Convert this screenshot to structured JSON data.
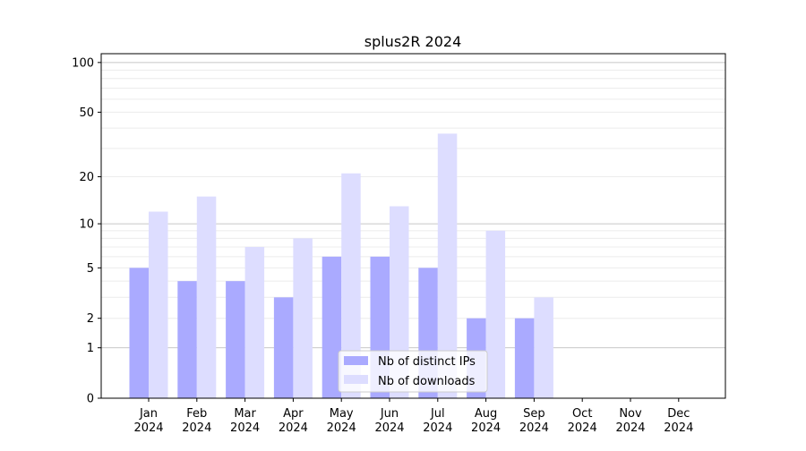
{
  "chart_data": {
    "type": "bar",
    "title": "splus2R 2024",
    "xlabel": "",
    "ylabel": "",
    "yscale": "log(1+y)",
    "ylim": [
      0,
      113
    ],
    "yticks": [
      0,
      1,
      2,
      5,
      10,
      20,
      50,
      100
    ],
    "grid": true,
    "legend_position": "bottom-center",
    "categories": [
      "Jan\n2024",
      "Feb\n2024",
      "Mar\n2024",
      "Apr\n2024",
      "May\n2024",
      "Jun\n2024",
      "Jul\n2024",
      "Aug\n2024",
      "Sep\n2024",
      "Oct\n2024",
      "Nov\n2024",
      "Dec\n2024"
    ],
    "series": [
      {
        "name": "Nb of distinct IPs",
        "color": "#aaaaff",
        "values": [
          5,
          4,
          4,
          3,
          6,
          6,
          5,
          2,
          2,
          0,
          0,
          0
        ]
      },
      {
        "name": "Nb of downloads",
        "color": "#ddddff",
        "values": [
          12,
          15,
          7,
          8,
          21,
          13,
          37,
          9,
          3,
          0,
          0,
          0
        ]
      }
    ]
  }
}
